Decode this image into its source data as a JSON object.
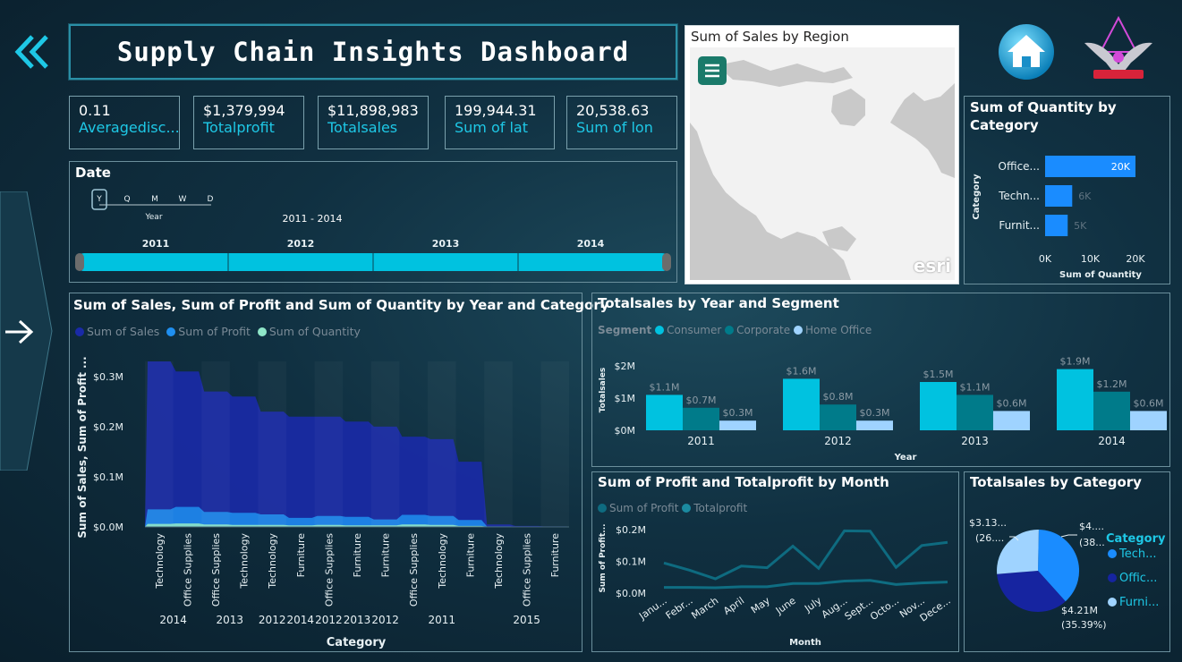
{
  "header": {
    "title": "Supply Chain Insights Dashboard",
    "back_icon": "double-chevron-left-icon",
    "home_icon": "home-icon",
    "logo_icon": "eagle-logo-icon",
    "side_arrow_icon": "arrow-right-icon"
  },
  "kpis": [
    {
      "value": "0.11",
      "label": "Averagedisc..."
    },
    {
      "value": "$1,379,994",
      "label": "Totalprofit"
    },
    {
      "value": "$11,898,983",
      "label": "Totalsales"
    },
    {
      "value": "199,944.31",
      "label": "Sum of lat"
    },
    {
      "value": "20,538.63",
      "label": "Sum of lon"
    }
  ],
  "date_slicer": {
    "title": "Date",
    "levels": [
      "Y",
      "Q",
      "M",
      "W",
      "D"
    ],
    "level_caption": "Year",
    "range": "2011 - 2014",
    "years": [
      "2011",
      "2012",
      "2013",
      "2014"
    ]
  },
  "map": {
    "title": "Sum of Sales by Region",
    "menu_icon": "hamburger-menu-icon",
    "attribution": "esri"
  },
  "colors": {
    "cyan": "#00c2e0",
    "teal": "#007b8a",
    "light_blue": "#9fd3ff",
    "navy": "#1a2aa8",
    "blue": "#1f8ff0",
    "mint": "#8fe6c8",
    "bright_blue": "#1a8cff"
  },
  "charts": {
    "quantity_by_category": {
      "title": "Sum of Quantity by Category",
      "xlabel": "Sum of Quantity",
      "ylabel": "Category",
      "ticks": [
        "0K",
        "10K",
        "20K"
      ]
    },
    "area": {
      "title": "Sum of Sales, Sum of Profit and Sum of Quantity by Year and Category",
      "legend": [
        "Sum of Sales",
        "Sum of Profit",
        "Sum of Quantity"
      ],
      "ylabel": "Sum of Sales, Sum of Profit ...",
      "xlabel": "Category",
      "yticks": [
        "$0.3M",
        "$0.2M",
        "$0.1M",
        "$0.0M"
      ]
    },
    "segment": {
      "title": "Totalsales by Year and Segment",
      "legend_title": "Segment",
      "legend": [
        "Consumer",
        "Corporate",
        "Home Office"
      ],
      "ylabel": "Totalsales",
      "xlabel": "Year",
      "yticks": [
        "$2M",
        "$1M",
        "$0M"
      ]
    },
    "profit_month": {
      "title": "Sum of Profit and Totalprofit by Month",
      "legend": [
        "Sum of Profit",
        "Totalprofit"
      ],
      "ylabel": "Sum of Profit...",
      "xlabel": "Month",
      "yticks": [
        "$0.2M",
        "$0.1M",
        "$0.0M"
      ]
    },
    "pie": {
      "title": "Totalsales by Category",
      "legend_title": "Category",
      "legend": [
        "Tech...",
        "Offic...",
        "Furni..."
      ],
      "labels": [
        {
          "v": "$4....",
          "p": "(38..."
        },
        {
          "v": "$4.21M",
          "p": "(35.39%)"
        },
        {
          "v": "$3.13...",
          "p": "(26...."
        }
      ]
    }
  },
  "chart_data": [
    {
      "type": "bar",
      "title": "Sum of Quantity by Category",
      "categories": [
        "Office...",
        "Techn...",
        "Furnit..."
      ],
      "values": [
        20000,
        6000,
        5000
      ],
      "data_labels": [
        "20K",
        "6K",
        "5K"
      ],
      "xlim": [
        0,
        20000
      ]
    },
    {
      "type": "area",
      "title": "Sum of Sales, Sum of Profit and Sum of Quantity by Year and Category",
      "categories": [
        "Technology",
        "Office Supplies",
        "Office Supplies",
        "Technology",
        "Technology",
        "Furniture",
        "Office Supplies",
        "Furniture",
        "Furniture",
        "Office Supplies",
        "Technology",
        "Furniture",
        "Technology",
        "Office Supplies",
        "Furniture"
      ],
      "years": [
        "2014",
        "2014",
        "2013",
        "2013",
        "2012",
        "2014",
        "2012",
        "2013",
        "2012",
        "2011",
        "2011",
        "2011",
        "2015",
        "2015",
        "2015"
      ],
      "year_labels": [
        {
          "label": "2014",
          "at": 0.5
        },
        {
          "label": "2013",
          "at": 2.5
        },
        {
          "label": "2012",
          "at": 4
        },
        {
          "label": "2014",
          "at": 5
        },
        {
          "label": "2012",
          "at": 6
        },
        {
          "label": "2013",
          "at": 7
        },
        {
          "label": "2012",
          "at": 8
        },
        {
          "label": "2011",
          "at": 10
        },
        {
          "label": "2015",
          "at": 13
        }
      ],
      "series": [
        {
          "name": "Sum of Sales",
          "values": [
            330000,
            310000,
            270000,
            260000,
            230000,
            220000,
            220000,
            210000,
            200000,
            180000,
            175000,
            130000,
            5000,
            2000,
            1000
          ]
        },
        {
          "name": "Sum of Profit",
          "values": [
            35000,
            40000,
            30000,
            28000,
            25000,
            18000,
            22000,
            20000,
            15000,
            24000,
            22000,
            14000,
            1000,
            500,
            300
          ]
        },
        {
          "name": "Sum of Quantity",
          "values": [
            6000,
            7000,
            5000,
            4000,
            4000,
            3000,
            4000,
            3000,
            3000,
            5000,
            4000,
            2000,
            100,
            50,
            30
          ]
        }
      ],
      "ylim": [
        0,
        330000
      ]
    },
    {
      "type": "bar",
      "title": "Totalsales by Year and Segment",
      "categories": [
        "2011",
        "2012",
        "2013",
        "2014"
      ],
      "series": [
        {
          "name": "Consumer",
          "values": [
            1.1,
            1.6,
            1.5,
            1.9
          ],
          "labels": [
            "$1.1M",
            "$1.6M",
            "$1.5M",
            "$1.9M"
          ]
        },
        {
          "name": "Corporate",
          "values": [
            0.7,
            0.8,
            1.1,
            1.2
          ],
          "labels": [
            "$0.7M",
            "$0.8M",
            "$1.1M",
            "$1.2M"
          ]
        },
        {
          "name": "Home Office",
          "values": [
            0.3,
            0.3,
            0.6,
            0.6
          ],
          "labels": [
            "$0.3M",
            "$0.3M",
            "$0.6M",
            "$0.6M"
          ]
        }
      ],
      "ylim": [
        0,
        2
      ]
    },
    {
      "type": "line",
      "title": "Sum of Profit and Totalprofit by Month",
      "categories": [
        "Janu...",
        "Febr...",
        "March",
        "April",
        "May",
        "June",
        "July",
        "Aug...",
        "Sept...",
        "Octo...",
        "Nov...",
        "Dece..."
      ],
      "series": [
        {
          "name": "Sum of Profit",
          "values": [
            0.095,
            0.072,
            0.045,
            0.085,
            0.08,
            0.148,
            0.078,
            0.196,
            0.195,
            0.081,
            0.15,
            0.16
          ]
        },
        {
          "name": "Totalprofit",
          "values": [
            0.018,
            0.018,
            0.017,
            0.02,
            0.02,
            0.03,
            0.03,
            0.038,
            0.04,
            0.027,
            0.032,
            0.035
          ]
        }
      ],
      "ylim": [
        0,
        0.2
      ]
    },
    {
      "type": "pie",
      "title": "Totalsales by Category",
      "categories": [
        "Technology",
        "Office Supplies",
        "Furniture"
      ],
      "values": [
        38.0,
        35.39,
        26.61
      ]
    }
  ]
}
